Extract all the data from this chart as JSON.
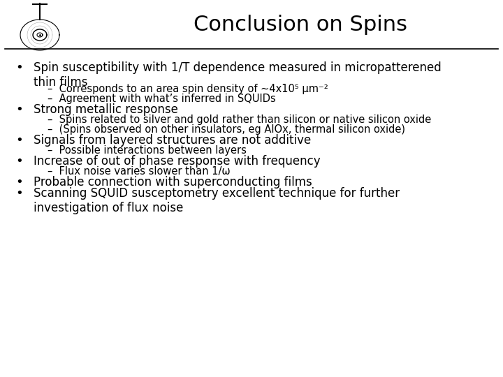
{
  "title": "Conclusion on Spins",
  "title_fontsize": 22,
  "title_fontweight": "normal",
  "background_color": "#ffffff",
  "text_color": "#000000",
  "font_family": "DejaVu Sans",
  "bullet_fontsize": 12,
  "sub_fontsize": 10.5,
  "content": [
    {
      "type": "bullet",
      "text": "Spin susceptibility with 1/T dependence measured in micropatterened\nthin films"
    },
    {
      "type": "sub",
      "text": "–  Corresponds to an area spin density of ~4x10⁵ μm⁻²"
    },
    {
      "type": "sub",
      "text": "–  Agreement with what’s inferred in SQUIDs"
    },
    {
      "type": "bullet",
      "text": "Strong metallic response"
    },
    {
      "type": "sub",
      "text": "–  Spins related to silver and gold rather than silicon or native silicon oxide"
    },
    {
      "type": "sub",
      "text": "–  (Spins observed on other insulators, eg AlOx, thermal silicon oxide)"
    },
    {
      "type": "bullet",
      "text": "Signals from layered structures are not additive"
    },
    {
      "type": "sub",
      "text": "–  Possible interactions between layers"
    },
    {
      "type": "bullet",
      "text": "Increase of out of phase response with frequency"
    },
    {
      "type": "sub",
      "text": "–  Flux noise varies slower than 1/ω"
    },
    {
      "type": "bullet",
      "text": "Probable connection with superconducting films"
    },
    {
      "type": "bullet",
      "text": "Scanning SQUID susceptometry excellent technique for further\ninvestigation of flux noise"
    }
  ]
}
